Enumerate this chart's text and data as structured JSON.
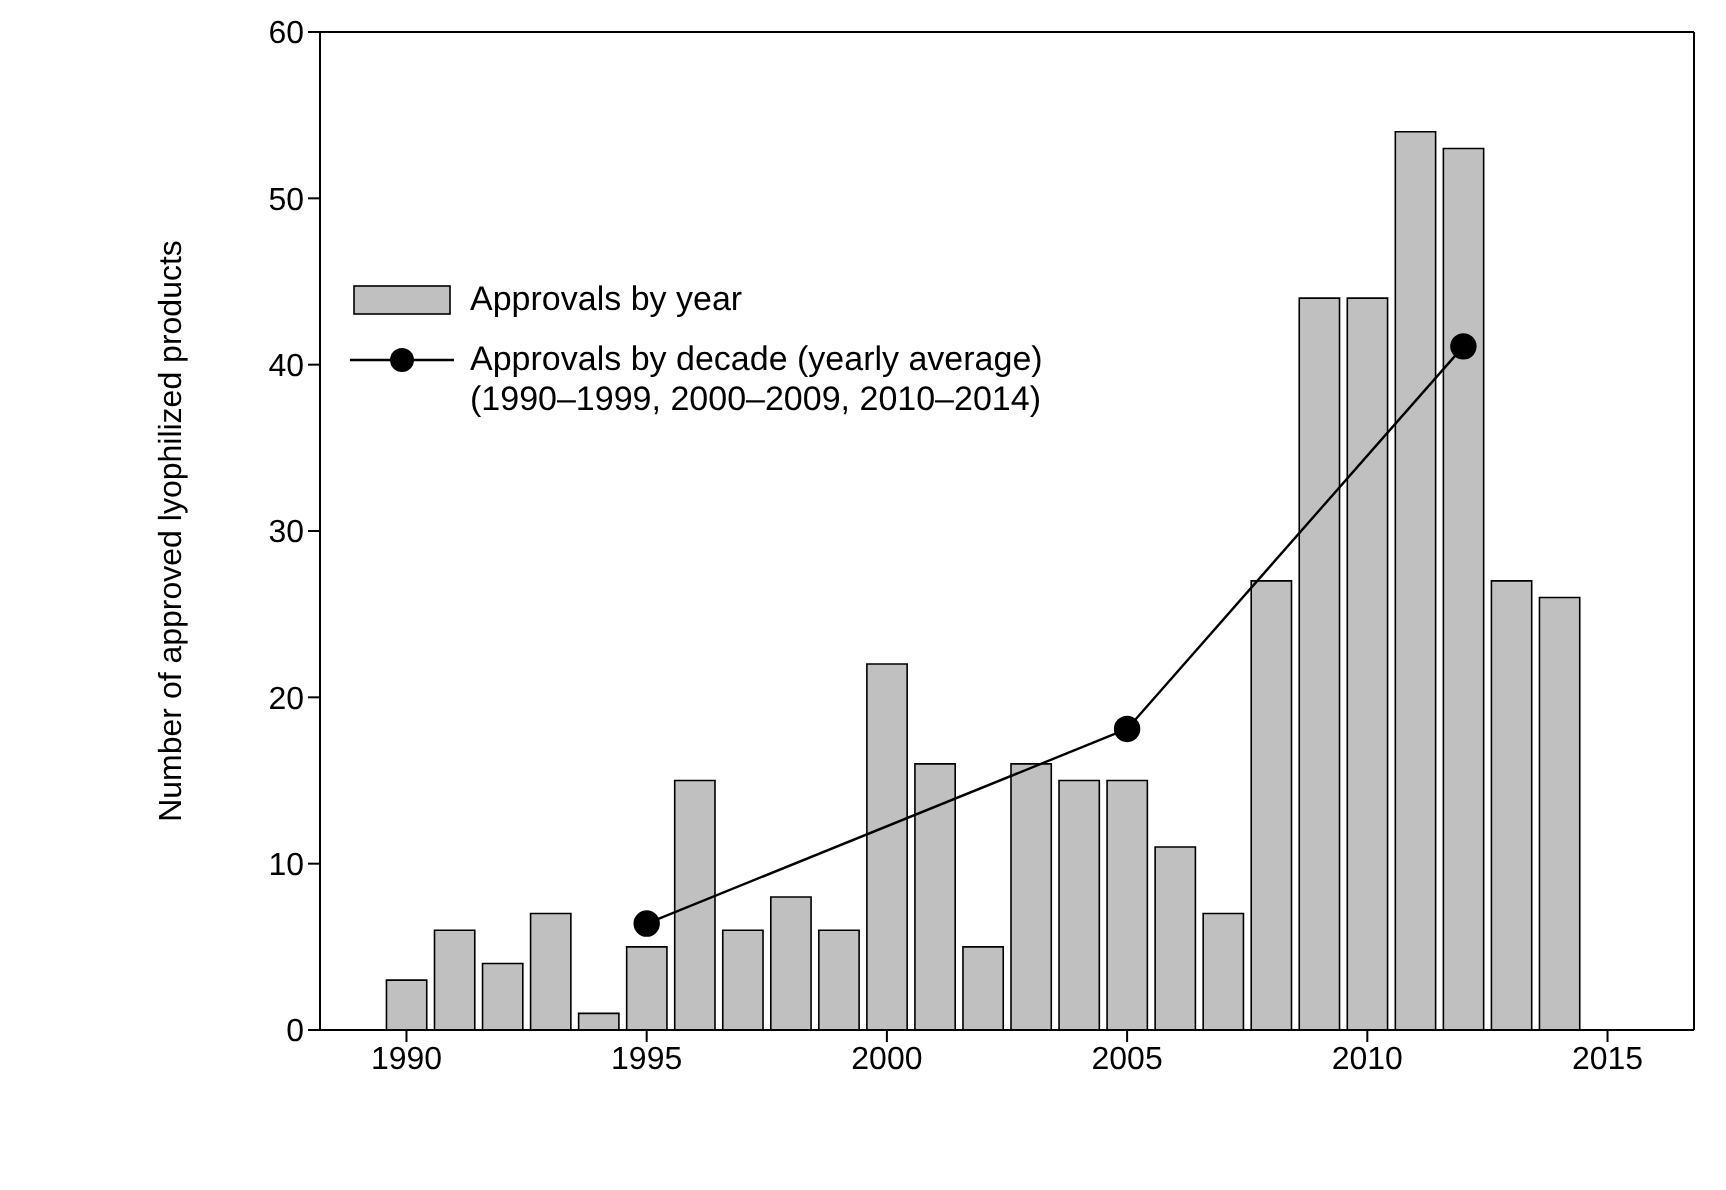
{
  "chart_data": {
    "type": "bar",
    "ylabel": "Number of approved lyophilized products",
    "x": [
      1990,
      1991,
      1992,
      1993,
      1994,
      1995,
      1996,
      1997,
      1998,
      1999,
      2000,
      2001,
      2002,
      2003,
      2004,
      2005,
      2006,
      2007,
      2008,
      2009,
      2010,
      2011,
      2012,
      2013,
      2014
    ],
    "series": [
      {
        "name": "Approvals by year",
        "color": "#c0c0c0",
        "values": [
          3,
          6,
          4,
          7,
          1,
          5,
          15,
          6,
          8,
          6,
          22,
          16,
          5,
          16,
          15,
          15,
          11,
          7,
          27,
          44,
          44,
          54,
          53,
          27,
          26
        ]
      },
      {
        "name": "Approvals by decade (yearly average)\n(1990–1999, 2000–2009, 2010–2014)",
        "type": "line",
        "color": "#000000",
        "x": [
          1995,
          2005,
          2012
        ],
        "values": [
          6.4,
          18.1,
          41.1
        ],
        "marker": "circle"
      }
    ],
    "xlim": [
      1988.2,
      2016.8
    ],
    "xticks": [
      1990,
      1995,
      2000,
      2005,
      2010,
      2015
    ],
    "ylim": [
      0,
      60
    ],
    "yticks": [
      0,
      10,
      20,
      30,
      40,
      50,
      60
    ],
    "grid": false,
    "legend": "top left"
  }
}
